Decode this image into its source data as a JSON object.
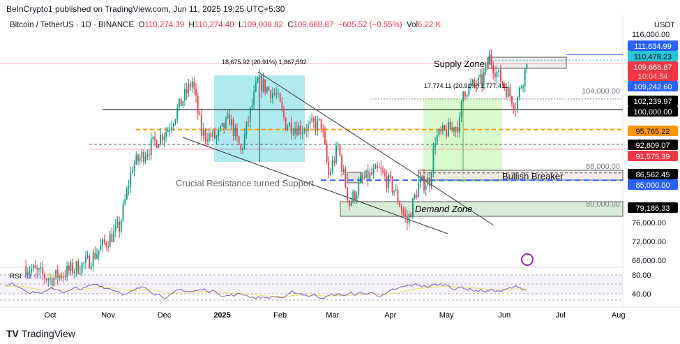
{
  "header": {
    "published": "BeInCrypto1 published on TradingView.com, Jun 11, 2025 19:25 UTC+5:30",
    "symbol": "Bitcoin / TetherUS · 1D · BINANCE",
    "o_label": "O",
    "o": "110,274.39",
    "h_label": "H",
    "h": "110,274.40",
    "l_label": "L",
    "l": "109,008.82",
    "c_label": "C",
    "c": "109,668.87",
    "change": "−605.52 (−0.55%)",
    "vol_label": "Vol",
    "vol": "6.22 K",
    "currency": "USDT"
  },
  "footer": {
    "brand": "TradingView"
  },
  "chart_data": {
    "type": "candlestick",
    "title": "Bitcoin / TetherUS 1D",
    "x_ticks": [
      "Oct",
      "Nov",
      "Dec",
      "2025",
      "Feb",
      "Mar",
      "Apr",
      "May",
      "Jun",
      "Jul",
      "Aug"
    ],
    "x_tick_days": [
      0,
      31,
      61,
      92,
      123,
      151,
      182,
      212,
      243,
      273,
      304
    ],
    "price_keypoints_day_price": [
      [
        -14,
        66800
      ],
      [
        0,
        64000
      ],
      [
        20,
        67500
      ],
      [
        37,
        75000
      ],
      [
        44,
        88000
      ],
      [
        51,
        91000
      ],
      [
        63,
        96000
      ],
      [
        76,
        106000
      ],
      [
        81,
        95000
      ],
      [
        89,
        94000
      ],
      [
        96,
        98000
      ],
      [
        102,
        91000
      ],
      [
        111,
        106000
      ],
      [
        121,
        103000
      ],
      [
        126,
        97000
      ],
      [
        134,
        96000
      ],
      [
        145,
        97000
      ],
      [
        149,
        86000
      ],
      [
        154,
        92000
      ],
      [
        160,
        80000
      ],
      [
        167,
        85000
      ],
      [
        176,
        87000
      ],
      [
        184,
        83000
      ],
      [
        191,
        76000
      ],
      [
        197,
        84000
      ],
      [
        203,
        85000
      ],
      [
        206,
        94000
      ],
      [
        219,
        97000
      ],
      [
        221,
        104000
      ],
      [
        231,
        106000
      ],
      [
        235,
        111000
      ],
      [
        240,
        107000
      ],
      [
        249,
        101000
      ],
      [
        255,
        109668
      ]
    ],
    "y_ticks": [
      116000,
      104000,
      88000,
      80000,
      76000,
      72000,
      68000
    ],
    "price_labels": [
      {
        "value": "111,634.99",
        "color": "#2962ff"
      },
      {
        "value": "110,478.23",
        "color": "#26c6da"
      },
      {
        "value": "109,668.87",
        "color": "#f23645",
        "sub": "10:04:54"
      },
      {
        "value": "109,242.60",
        "color": "#2962ff"
      },
      {
        "value": "102,239.97",
        "color": "#000000"
      },
      {
        "value": "100,000.00",
        "color": "#000000"
      },
      {
        "value": "95,765.22",
        "color": "#ff9800"
      },
      {
        "value": "92,609.07",
        "color": "#000000"
      },
      {
        "value": "91,575.39",
        "color": "#f23645"
      },
      {
        "value": "86,562.45",
        "color": "#000000"
      },
      {
        "value": "85,000.00",
        "color": "#2962ff"
      },
      {
        "value": "79,186.33",
        "color": "#000000"
      }
    ],
    "annotations": {
      "supply": "Supply Zone",
      "demand": "Demand Zone",
      "breaker": "Bullish Breaker",
      "support": "Crucial Resistance turned Support",
      "measure1": "18,675.92 (20.91%) 1,867,592",
      "measure2": "17,774.11 (20.91%) 1,777,411"
    },
    "rsi": {
      "label": "RSI",
      "value": "61.61",
      "ma": "54.27",
      "levels": [
        "80.00",
        "40.00"
      ]
    }
  }
}
